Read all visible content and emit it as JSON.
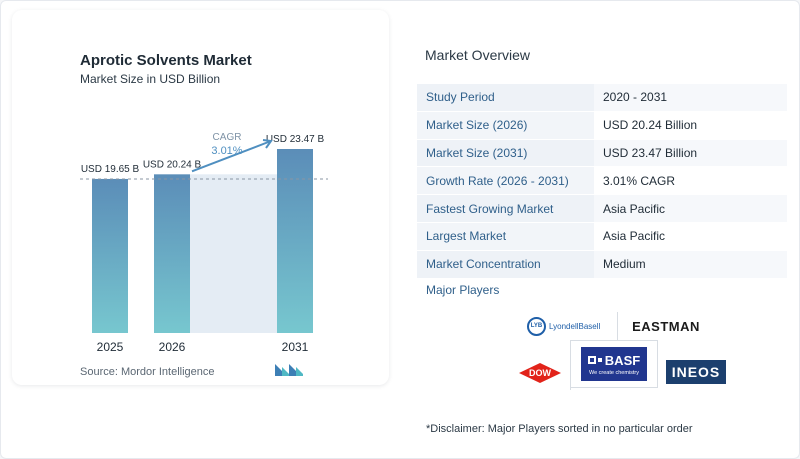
{
  "chart_data": {
    "type": "bar",
    "title": "Aprotic Solvents Market",
    "subtitle": "Market Size in USD Billion",
    "categories": [
      "2025",
      "2026",
      "2031"
    ],
    "values": [
      19.65,
      20.24,
      23.47
    ],
    "data_labels": [
      "USD 19.65 B",
      "USD 20.24 B",
      "USD 23.47 B"
    ],
    "annotation": {
      "label": "CAGR",
      "value": "3.01%"
    },
    "ylim": [
      0,
      23.47
    ],
    "colors": {
      "bar_top": "#5b8db8",
      "bar_bottom": "#77c7cf",
      "band": "#dbe6f0",
      "annotation": "#4f8fc0"
    }
  },
  "source_text": "Source:  Mordor Intelligence",
  "overview": {
    "title": "Market Overview",
    "rows": [
      {
        "key": "Study Period",
        "value": "2020 - 2031"
      },
      {
        "key": "Market Size (2026)",
        "value": "USD 20.24 Billion"
      },
      {
        "key": "Market Size (2031)",
        "value": "USD 23.47 Billion"
      },
      {
        "key": "Growth Rate (2026 - 2031)",
        "value": "3.01% CAGR"
      },
      {
        "key": "Fastest Growing Market",
        "value": "Asia Pacific"
      },
      {
        "key": "Largest Market",
        "value": "Asia Pacific"
      },
      {
        "key": "Market Concentration",
        "value": "Medium"
      }
    ]
  },
  "players": {
    "title": "Major Players",
    "logos": {
      "lyondellbasell": {
        "mark": "LYB",
        "name": "LyondellBasell"
      },
      "eastman": "EASTMAN",
      "dow": "DOW",
      "basf": {
        "name": "BASF",
        "tagline": "We create chemistry"
      },
      "ineos": "INEOS"
    }
  },
  "disclaimer": "*Disclaimer: Major Players sorted in no particular order"
}
